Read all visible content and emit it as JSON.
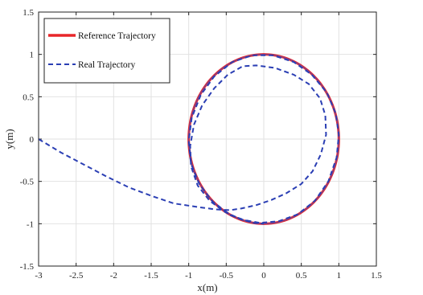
{
  "chart_data": {
    "type": "line",
    "title": "",
    "xlabel": "x(m)",
    "ylabel": "y(m)",
    "xlim": [
      -3,
      1.5
    ],
    "ylim": [
      -1.5,
      1.5
    ],
    "xticks": [
      "-3",
      "-2.5",
      "-2",
      "-1.5",
      "-1",
      "-0.5",
      "0",
      "0.5",
      "1",
      "1.5"
    ],
    "yticks": [
      "1.5",
      "1",
      "0.5",
      "0",
      "-0.5",
      "-1",
      "-1.5"
    ],
    "grid": true,
    "legend_placement": "top-left",
    "series": [
      {
        "name": "Reference Trajectory",
        "style": "solid",
        "color": "#e8262a",
        "overlay_color": "#6a4aa0",
        "shape": "circle",
        "center": [
          0,
          0
        ],
        "radius": 1
      },
      {
        "name": "Real Trajectory",
        "style": "dashed",
        "color": "#2b3fb4",
        "points": [
          [
            -3.0,
            0.0
          ],
          [
            -2.7,
            -0.16
          ],
          [
            -2.4,
            -0.3
          ],
          [
            -2.1,
            -0.44
          ],
          [
            -1.8,
            -0.57
          ],
          [
            -1.5,
            -0.67
          ],
          [
            -1.2,
            -0.76
          ],
          [
            -0.9,
            -0.8
          ],
          [
            -0.65,
            -0.83
          ],
          [
            -0.45,
            -0.84
          ],
          [
            -0.3,
            -0.82
          ],
          [
            -0.1,
            -0.78
          ],
          [
            0.1,
            -0.72
          ],
          [
            0.3,
            -0.64
          ],
          [
            0.5,
            -0.53
          ],
          [
            0.65,
            -0.38
          ],
          [
            0.76,
            -0.18
          ],
          [
            0.83,
            0.05
          ],
          [
            0.82,
            0.28
          ],
          [
            0.75,
            0.48
          ],
          [
            0.6,
            0.65
          ],
          [
            0.4,
            0.76
          ],
          [
            0.15,
            0.84
          ],
          [
            -0.1,
            0.87
          ],
          [
            -0.28,
            0.86
          ],
          [
            -0.48,
            0.76
          ],
          [
            -0.66,
            0.6
          ],
          [
            -0.82,
            0.4
          ],
          [
            -0.93,
            0.17
          ],
          [
            -0.98,
            -0.08
          ],
          [
            -0.97,
            -0.32
          ],
          [
            -0.88,
            -0.55
          ],
          [
            -0.72,
            -0.73
          ],
          [
            -0.52,
            -0.86
          ],
          [
            -0.3,
            -0.95
          ],
          [
            -0.05,
            -0.99
          ],
          [
            0.2,
            -0.97
          ],
          [
            0.45,
            -0.89
          ],
          [
            0.68,
            -0.73
          ],
          [
            0.86,
            -0.5
          ],
          [
            0.97,
            -0.22
          ],
          [
            1.0,
            0.05
          ],
          [
            0.96,
            0.3
          ],
          [
            0.84,
            0.55
          ],
          [
            0.64,
            0.76
          ],
          [
            0.4,
            0.91
          ],
          [
            0.12,
            0.99
          ],
          [
            -0.15,
            0.99
          ],
          [
            -0.42,
            0.91
          ],
          [
            -0.66,
            0.74
          ],
          [
            -0.84,
            0.52
          ],
          [
            -0.96,
            0.25
          ],
          [
            -1.0,
            -0.02
          ],
          [
            -0.97,
            -0.29
          ],
          [
            -0.86,
            -0.53
          ],
          [
            -0.68,
            -0.74
          ],
          [
            -0.44,
            -0.9
          ],
          [
            -0.15,
            -0.99
          ],
          [
            0.0,
            -1.0
          ]
        ]
      }
    ]
  }
}
